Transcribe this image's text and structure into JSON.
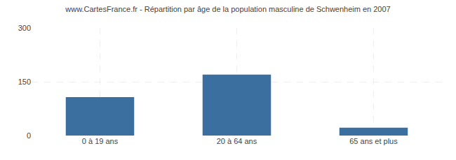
{
  "chart_data": {
    "type": "bar",
    "title": "www.CartesFrance.fr - Répartition par âge de la population masculine de Schwenheim en 2007",
    "categories": [
      "0 à 19 ans",
      "20 à 64 ans",
      "65 ans et plus"
    ],
    "values": [
      107,
      170,
      22
    ],
    "color": "#3a6f9f",
    "ylim": [
      0,
      300
    ],
    "yticks": [
      0,
      150,
      300
    ],
    "grid": true
  }
}
